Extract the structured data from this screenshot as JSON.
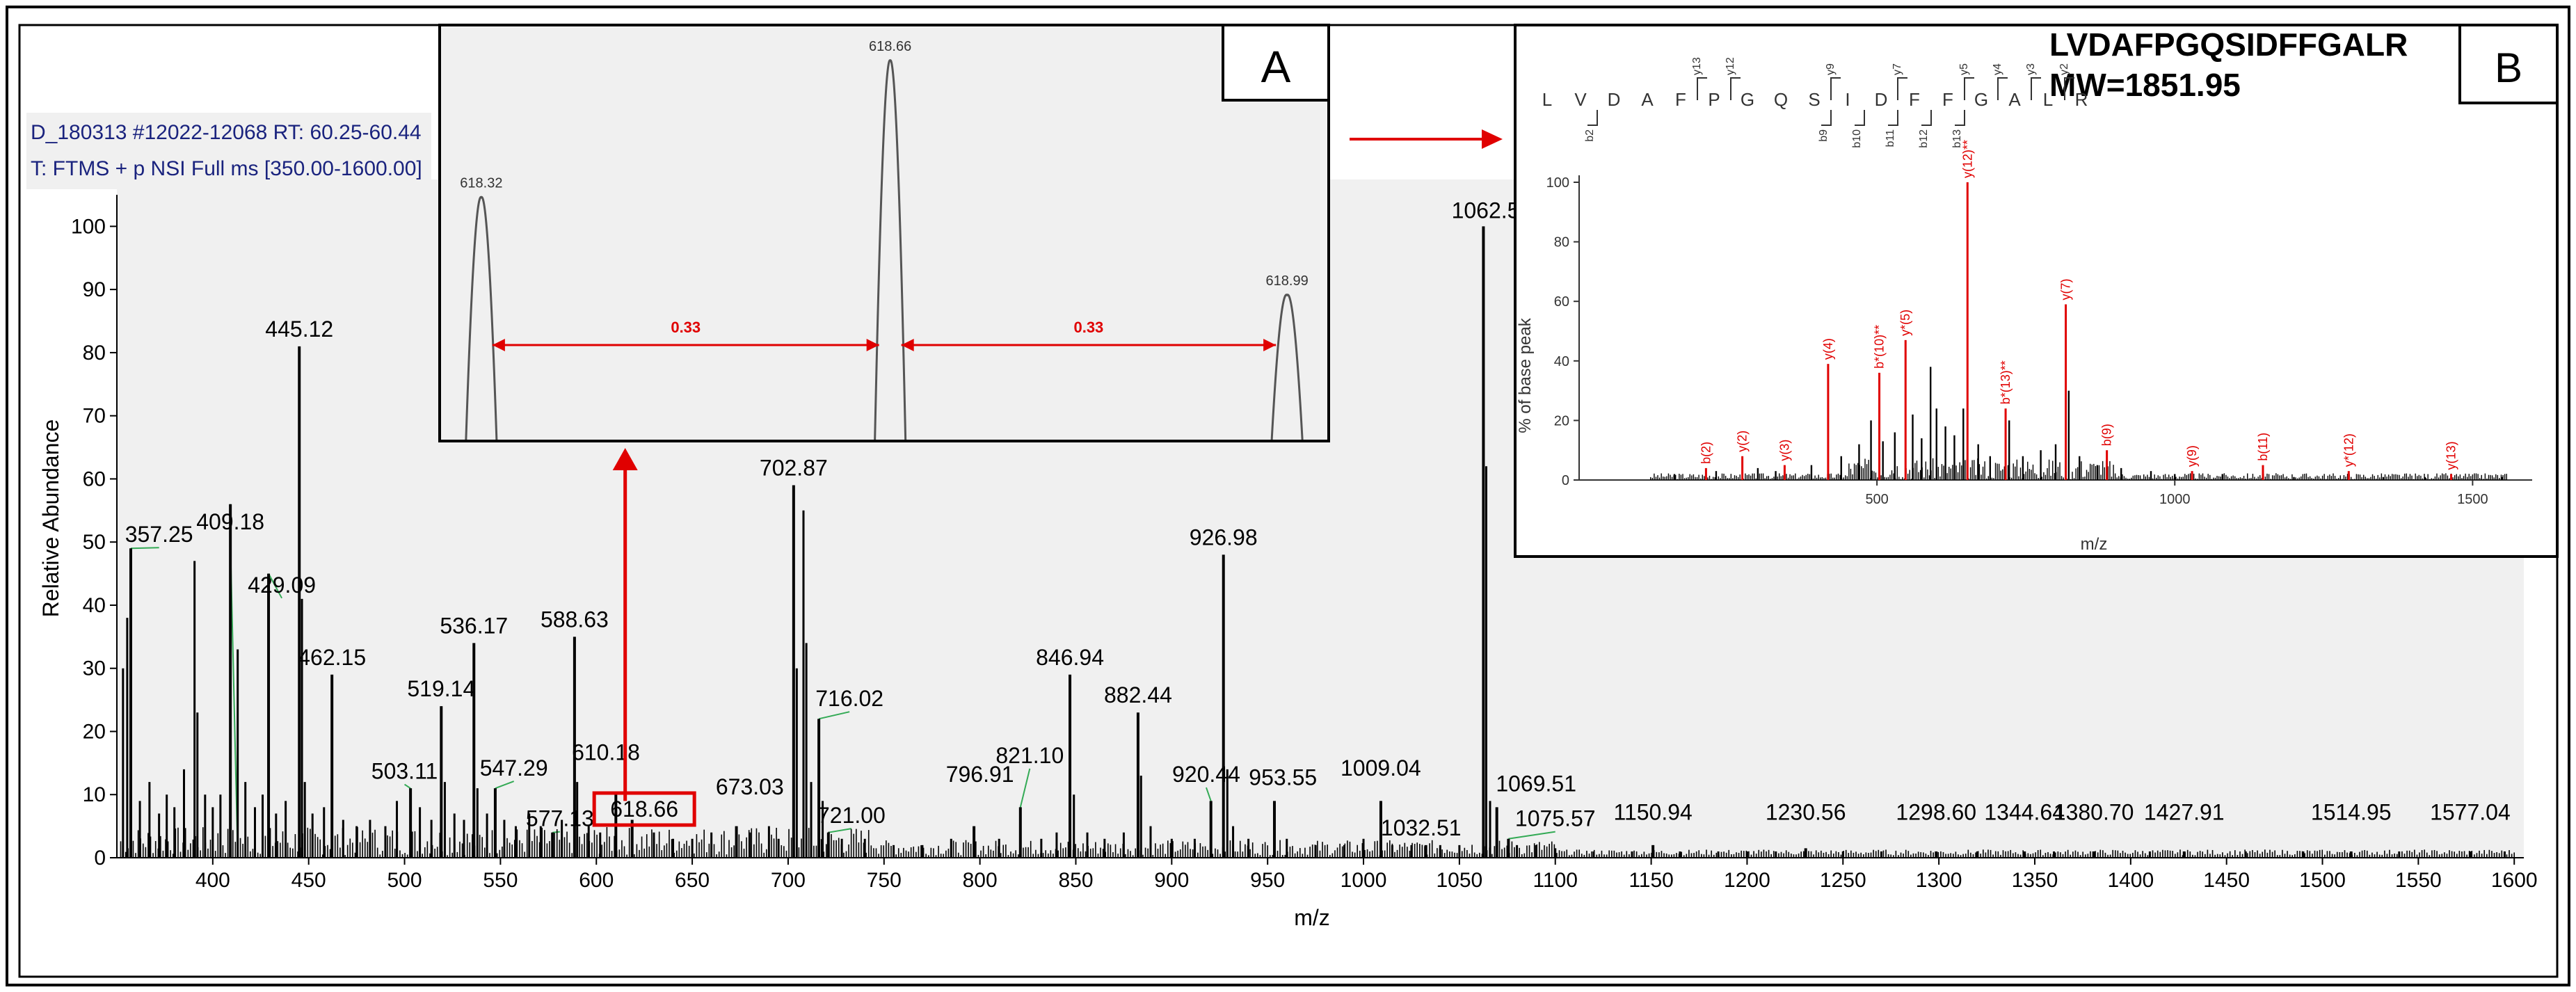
{
  "chart_data": [
    {
      "id": "main",
      "type": "bar",
      "header": [
        "D_180313 #12022-12068   RT: 60.25-60.44",
        "T: FTMS + p NSI Full ms [350.00-1600.00]"
      ],
      "xlabel": "m/z",
      "ylabel": "Relative Abundance",
      "xlim": [
        350,
        1605
      ],
      "ylim": [
        0,
        105
      ],
      "xticks": [
        400,
        450,
        500,
        550,
        600,
        650,
        700,
        750,
        800,
        850,
        900,
        950,
        1000,
        1050,
        1100,
        1150,
        1200,
        1250,
        1300,
        1350,
        1400,
        1450,
        1500,
        1550,
        1600
      ],
      "yticks": [
        0,
        10,
        20,
        30,
        40,
        50,
        60,
        70,
        80,
        90,
        100
      ],
      "peaks": [
        {
          "mz": 357.25,
          "int": 49,
          "label": "357.25"
        },
        {
          "mz": 409.18,
          "int": 56,
          "label": "409.18"
        },
        {
          "mz": 429.09,
          "int": 45,
          "label": "429.09"
        },
        {
          "mz": 445.12,
          "int": 81,
          "label": "445.12"
        },
        {
          "mz": 462.15,
          "int": 29,
          "label": "462.15"
        },
        {
          "mz": 503.11,
          "int": 11,
          "label": "503.11"
        },
        {
          "mz": 519.14,
          "int": 24,
          "label": "519.14"
        },
        {
          "mz": 536.17,
          "int": 34,
          "label": "536.17"
        },
        {
          "mz": 547.29,
          "int": 11,
          "label": "547.29"
        },
        {
          "mz": 577.13,
          "int": 4,
          "label": "577.13"
        },
        {
          "mz": 588.63,
          "int": 35,
          "label": "588.63"
        },
        {
          "mz": 610.18,
          "int": 10,
          "label": "610.18"
        },
        {
          "mz": 618.66,
          "int": 6,
          "label": "618.66"
        },
        {
          "mz": 673.03,
          "int": 5,
          "label": "673.03"
        },
        {
          "mz": 702.87,
          "int": 59,
          "label": "702.87"
        },
        {
          "mz": 716.02,
          "int": 22,
          "label": "716.02"
        },
        {
          "mz": 721.0,
          "int": 4,
          "label": "721.00"
        },
        {
          "mz": 796.91,
          "int": 5,
          "label": "796.91"
        },
        {
          "mz": 821.1,
          "int": 8,
          "label": "821.10"
        },
        {
          "mz": 846.94,
          "int": 29,
          "label": "846.94"
        },
        {
          "mz": 882.44,
          "int": 23,
          "label": "882.44"
        },
        {
          "mz": 920.44,
          "int": 9,
          "label": "920.44"
        },
        {
          "mz": 926.98,
          "int": 48,
          "label": "926.98"
        },
        {
          "mz": 953.55,
          "int": 9,
          "label": "953.55"
        },
        {
          "mz": 1009.04,
          "int": 9,
          "label": "1009.04"
        },
        {
          "mz": 1032.51,
          "int": 2,
          "label": "1032.51"
        },
        {
          "mz": 1062.53,
          "int": 100,
          "label": "1062.53"
        },
        {
          "mz": 1069.51,
          "int": 8,
          "label": "1069.51"
        },
        {
          "mz": 1075.57,
          "int": 3,
          "label": "1075.57"
        },
        {
          "mz": 1150.94,
          "int": 2,
          "label": "1150.94"
        },
        {
          "mz": 1230.56,
          "int": 1.5,
          "label": "1230.56"
        },
        {
          "mz": 1298.6,
          "int": 1,
          "label": "1298.60"
        },
        {
          "mz": 1344.64,
          "int": 1,
          "label": "1344.64"
        },
        {
          "mz": 1380.7,
          "int": 1,
          "label": "1380.70"
        },
        {
          "mz": 1427.91,
          "int": 1,
          "label": "1427.91"
        },
        {
          "mz": 1514.95,
          "int": 1,
          "label": "1514.95"
        },
        {
          "mz": 1577.04,
          "int": 1,
          "label": "1577.04"
        }
      ],
      "minor_peaks": [
        {
          "mz": 353.2,
          "int": 30
        },
        {
          "mz": 355.4,
          "int": 38
        },
        {
          "mz": 362,
          "int": 9
        },
        {
          "mz": 367,
          "int": 12
        },
        {
          "mz": 372,
          "int": 7
        },
        {
          "mz": 376,
          "int": 10
        },
        {
          "mz": 380,
          "int": 8
        },
        {
          "mz": 385,
          "int": 14
        },
        {
          "mz": 390.5,
          "int": 47
        },
        {
          "mz": 392,
          "int": 23
        },
        {
          "mz": 396,
          "int": 10
        },
        {
          "mz": 400,
          "int": 8
        },
        {
          "mz": 404,
          "int": 10
        },
        {
          "mz": 413,
          "int": 33
        },
        {
          "mz": 417,
          "int": 12
        },
        {
          "mz": 422,
          "int": 8
        },
        {
          "mz": 426,
          "int": 10
        },
        {
          "mz": 433,
          "int": 7
        },
        {
          "mz": 438,
          "int": 9
        },
        {
          "mz": 446.5,
          "int": 41
        },
        {
          "mz": 448,
          "int": 12
        },
        {
          "mz": 452,
          "int": 7
        },
        {
          "mz": 458,
          "int": 8
        },
        {
          "mz": 468,
          "int": 6
        },
        {
          "mz": 475,
          "int": 5
        },
        {
          "mz": 482,
          "int": 6
        },
        {
          "mz": 490,
          "int": 5
        },
        {
          "mz": 496,
          "int": 9
        },
        {
          "mz": 508,
          "int": 8
        },
        {
          "mz": 514,
          "int": 6
        },
        {
          "mz": 521,
          "int": 12
        },
        {
          "mz": 526,
          "int": 7
        },
        {
          "mz": 531,
          "int": 6
        },
        {
          "mz": 538,
          "int": 11
        },
        {
          "mz": 543,
          "int": 7
        },
        {
          "mz": 552,
          "int": 6
        },
        {
          "mz": 558,
          "int": 5
        },
        {
          "mz": 565,
          "int": 7
        },
        {
          "mz": 571,
          "int": 5
        },
        {
          "mz": 582,
          "int": 6
        },
        {
          "mz": 590,
          "int": 12
        },
        {
          "mz": 596,
          "int": 5
        },
        {
          "mz": 602,
          "int": 4
        },
        {
          "mz": 630,
          "int": 4
        },
        {
          "mz": 640,
          "int": 3
        },
        {
          "mz": 650,
          "int": 3
        },
        {
          "mz": 660,
          "int": 4
        },
        {
          "mz": 680,
          "int": 4
        },
        {
          "mz": 690,
          "int": 5
        },
        {
          "mz": 695,
          "int": 3
        },
        {
          "mz": 704.5,
          "int": 30
        },
        {
          "mz": 708,
          "int": 55
        },
        {
          "mz": 709.5,
          "int": 34
        },
        {
          "mz": 712,
          "int": 12
        },
        {
          "mz": 718,
          "int": 9
        },
        {
          "mz": 728,
          "int": 3
        },
        {
          "mz": 740,
          "int": 3
        },
        {
          "mz": 755,
          "int": 2
        },
        {
          "mz": 770,
          "int": 2
        },
        {
          "mz": 785,
          "int": 3
        },
        {
          "mz": 810,
          "int": 3
        },
        {
          "mz": 832,
          "int": 3
        },
        {
          "mz": 840,
          "int": 4
        },
        {
          "mz": 849,
          "int": 10
        },
        {
          "mz": 856,
          "int": 4
        },
        {
          "mz": 865,
          "int": 3
        },
        {
          "mz": 875,
          "int": 4
        },
        {
          "mz": 884,
          "int": 13
        },
        {
          "mz": 889,
          "int": 5
        },
        {
          "mz": 900,
          "int": 3
        },
        {
          "mz": 912,
          "int": 3
        },
        {
          "mz": 929,
          "int": 14
        },
        {
          "mz": 932,
          "int": 5
        },
        {
          "mz": 940,
          "int": 3
        },
        {
          "mz": 960,
          "int": 3
        },
        {
          "mz": 975,
          "int": 2
        },
        {
          "mz": 990,
          "int": 2
        },
        {
          "mz": 1000,
          "int": 3
        },
        {
          "mz": 1015,
          "int": 2
        },
        {
          "mz": 1025,
          "int": 2
        },
        {
          "mz": 1040,
          "int": 2
        },
        {
          "mz": 1050,
          "int": 2
        },
        {
          "mz": 1064,
          "int": 62
        },
        {
          "mz": 1066,
          "int": 9
        },
        {
          "mz": 1080,
          "int": 2
        },
        {
          "mz": 1090,
          "int": 2
        },
        {
          "mz": 1100,
          "int": 1.5
        },
        {
          "mz": 1120,
          "int": 1
        },
        {
          "mz": 1140,
          "int": 1
        },
        {
          "mz": 1165,
          "int": 1
        },
        {
          "mz": 1185,
          "int": 1
        },
        {
          "mz": 1200,
          "int": 1
        },
        {
          "mz": 1215,
          "int": 1
        },
        {
          "mz": 1250,
          "int": 1
        },
        {
          "mz": 1270,
          "int": 1
        },
        {
          "mz": 1320,
          "int": 1
        },
        {
          "mz": 1360,
          "int": 1
        },
        {
          "mz": 1410,
          "int": 1
        },
        {
          "mz": 1460,
          "int": 1
        },
        {
          "mz": 1490,
          "int": 1
        },
        {
          "mz": 1540,
          "int": 1
        },
        {
          "mz": 1595,
          "int": 1
        }
      ],
      "highlight": {
        "mz": 618.66,
        "label": "618.66",
        "color": "#e00000"
      },
      "colors": {
        "peak": "#000000",
        "leader": "#33aa55",
        "arrow": "#e00000"
      }
    },
    {
      "id": "inset_A",
      "type": "line",
      "panel_label": "A",
      "xlim": [
        618.29,
        619.02
      ],
      "peaks": [
        {
          "mz": 618.32,
          "int": 0.62,
          "label": "618.32"
        },
        {
          "mz": 618.66,
          "int": 0.97,
          "label": "618.66"
        },
        {
          "mz": 618.99,
          "int": 0.37,
          "label": "618.99"
        }
      ],
      "spacings": [
        {
          "from": 618.32,
          "to": 618.66,
          "label": "0.33"
        },
        {
          "from": 618.66,
          "to": 618.99,
          "label": "0.33"
        }
      ]
    },
    {
      "id": "inset_B",
      "type": "bar",
      "panel_label": "B",
      "title": "LVDAFPGQSIDFFGALR",
      "subtitle": "MW=1851.95",
      "sequence": [
        "L",
        "V",
        "D",
        "A",
        "F",
        "P",
        "G",
        "Q",
        "S",
        "I",
        "D",
        "F",
        "F",
        "G",
        "A",
        "L",
        "R"
      ],
      "y_ions_above": [
        "y13",
        "y12",
        "y9",
        "y7",
        "y5",
        "y4",
        "y3",
        "y2"
      ],
      "b_ions_below": [
        "b2",
        "b9",
        "b10",
        "b11",
        "b12",
        "b13"
      ],
      "xlabel": "m/z",
      "ylabel": "% of base peak",
      "xlim": [
        0,
        1600
      ],
      "ylim": [
        0,
        100
      ],
      "xticks": [
        500,
        1000,
        1500
      ],
      "yticks": [
        0,
        20,
        40,
        60,
        80,
        100
      ],
      "labeled_peaks": [
        {
          "mz": 213,
          "int": 4,
          "label": "b(2)"
        },
        {
          "mz": 274,
          "int": 8,
          "label": "y(2)"
        },
        {
          "mz": 345,
          "int": 5,
          "label": "y(3)"
        },
        {
          "mz": 418,
          "int": 39,
          "label": "y(4)"
        },
        {
          "mz": 504,
          "int": 36,
          "label": "b*(10)**"
        },
        {
          "mz": 548,
          "int": 47,
          "label": "y*(5)"
        },
        {
          "mz": 652,
          "int": 100,
          "label": "y(12)**"
        },
        {
          "mz": 716,
          "int": 24,
          "label": "b*(13)**"
        },
        {
          "mz": 817,
          "int": 59,
          "label": "y(7)"
        },
        {
          "mz": 886,
          "int": 10,
          "label": "b(9)"
        },
        {
          "mz": 1029,
          "int": 3,
          "label": "y(9)"
        },
        {
          "mz": 1148,
          "int": 5,
          "label": "b(11)"
        },
        {
          "mz": 1292,
          "int": 3,
          "label": "y*(12)"
        },
        {
          "mz": 1464,
          "int": 2,
          "label": "y(13)"
        }
      ],
      "minor_peaks": [
        {
          "mz": 160,
          "int": 2
        },
        {
          "mz": 230,
          "int": 3
        },
        {
          "mz": 300,
          "int": 4
        },
        {
          "mz": 330,
          "int": 3
        },
        {
          "mz": 390,
          "int": 5
        },
        {
          "mz": 440,
          "int": 8
        },
        {
          "mz": 470,
          "int": 12
        },
        {
          "mz": 490,
          "int": 20
        },
        {
          "mz": 510,
          "int": 13
        },
        {
          "mz": 530,
          "int": 16
        },
        {
          "mz": 560,
          "int": 22
        },
        {
          "mz": 575,
          "int": 14
        },
        {
          "mz": 590,
          "int": 38
        },
        {
          "mz": 600,
          "int": 24
        },
        {
          "mz": 615,
          "int": 18
        },
        {
          "mz": 630,
          "int": 15
        },
        {
          "mz": 645,
          "int": 24
        },
        {
          "mz": 670,
          "int": 12
        },
        {
          "mz": 690,
          "int": 8
        },
        {
          "mz": 722,
          "int": 20
        },
        {
          "mz": 745,
          "int": 8
        },
        {
          "mz": 775,
          "int": 10
        },
        {
          "mz": 800,
          "int": 12
        },
        {
          "mz": 822,
          "int": 30
        },
        {
          "mz": 840,
          "int": 8
        },
        {
          "mz": 870,
          "int": 5
        },
        {
          "mz": 910,
          "int": 4
        },
        {
          "mz": 960,
          "int": 3
        },
        {
          "mz": 1000,
          "int": 2
        },
        {
          "mz": 1080,
          "int": 2
        },
        {
          "mz": 1200,
          "int": 1
        },
        {
          "mz": 1350,
          "int": 1
        },
        {
          "mz": 1420,
          "int": 1
        },
        {
          "mz": 1550,
          "int": 1
        }
      ],
      "colors": {
        "ion": "#e00000",
        "peak": "#000000"
      }
    }
  ]
}
